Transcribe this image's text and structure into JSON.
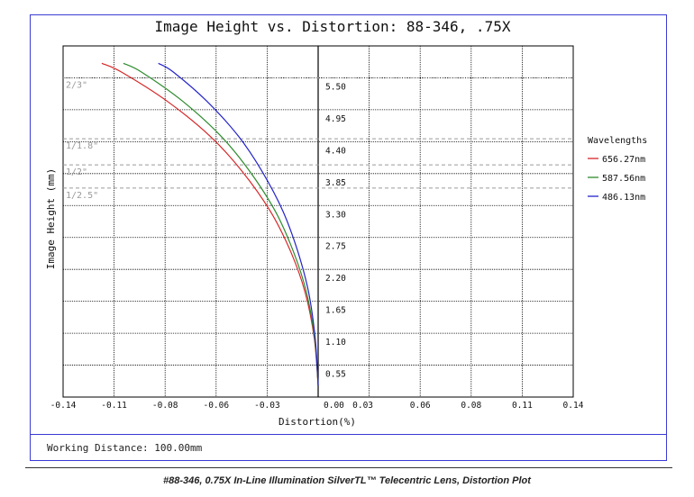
{
  "chart_data": {
    "type": "line",
    "title": "Image Height vs. Distortion: 88-346, .75X",
    "xlabel": "Distortion(%)",
    "ylabel": "Image Height (mm)",
    "xlim": [
      -0.14,
      0.14
    ],
    "ylim": [
      0,
      6.05
    ],
    "grid": true,
    "x_ticks": [
      "-0.14",
      "-0.11",
      "-0.08",
      "-0.06",
      "-0.03",
      "0.00",
      "0.03",
      "0.06",
      "0.08",
      "0.11",
      "0.14"
    ],
    "y_ticks": [
      "0.55",
      "1.10",
      "1.65",
      "2.20",
      "2.75",
      "3.30",
      "3.85",
      "4.40",
      "4.95",
      "5.50"
    ],
    "sensor_lines": [
      {
        "label": "2/3\"",
        "y": 5.5
      },
      {
        "label": "1/1.8\"",
        "y": 4.45
      },
      {
        "label": "1/2\"",
        "y": 4.0
      },
      {
        "label": "1/2.5\"",
        "y": 3.6
      }
    ],
    "legend_title": "Wavelengths",
    "legend_position": "right",
    "series": [
      {
        "name": "656.27nm",
        "color": "#d62728",
        "points": [
          [
            0.0,
            0.2
          ],
          [
            -0.0021,
            1.0
          ],
          [
            -0.0071,
            1.8
          ],
          [
            -0.015,
            2.5
          ],
          [
            -0.0262,
            3.2
          ],
          [
            -0.042,
            3.9
          ],
          [
            -0.0595,
            4.5
          ],
          [
            -0.083,
            5.1
          ],
          [
            -0.108,
            5.6
          ],
          [
            -0.1188,
            5.75
          ]
        ]
      },
      {
        "name": "587.56nm",
        "color": "#2e8b2e",
        "points": [
          [
            0.0,
            0.2
          ],
          [
            -0.0019,
            1.0
          ],
          [
            -0.0064,
            1.8
          ],
          [
            -0.0135,
            2.5
          ],
          [
            -0.0235,
            3.2
          ],
          [
            -0.0378,
            3.9
          ],
          [
            -0.0535,
            4.5
          ],
          [
            -0.0745,
            5.1
          ],
          [
            -0.097,
            5.6
          ],
          [
            -0.1069,
            5.75
          ]
        ]
      },
      {
        "name": "486.13nm",
        "color": "#2323c8",
        "points": [
          [
            0.0,
            0.2
          ],
          [
            -0.0016,
            1.0
          ],
          [
            -0.0052,
            1.8
          ],
          [
            -0.0111,
            2.5
          ],
          [
            -0.0193,
            3.2
          ],
          [
            -0.031,
            3.9
          ],
          [
            -0.0439,
            4.5
          ],
          [
            -0.0612,
            5.1
          ],
          [
            -0.0795,
            5.6
          ],
          [
            -0.0877,
            5.75
          ]
        ]
      }
    ]
  },
  "footer": {
    "working_distance": "Working Distance: 100.00mm"
  },
  "caption": "#88-346, 0.75X In-Line Illumination SilverTL™ Telecentric Lens, Distortion Plot",
  "colors": {
    "frame": "#3a3ad6",
    "grid": "#000000",
    "sensor": "#9a9a9a"
  }
}
